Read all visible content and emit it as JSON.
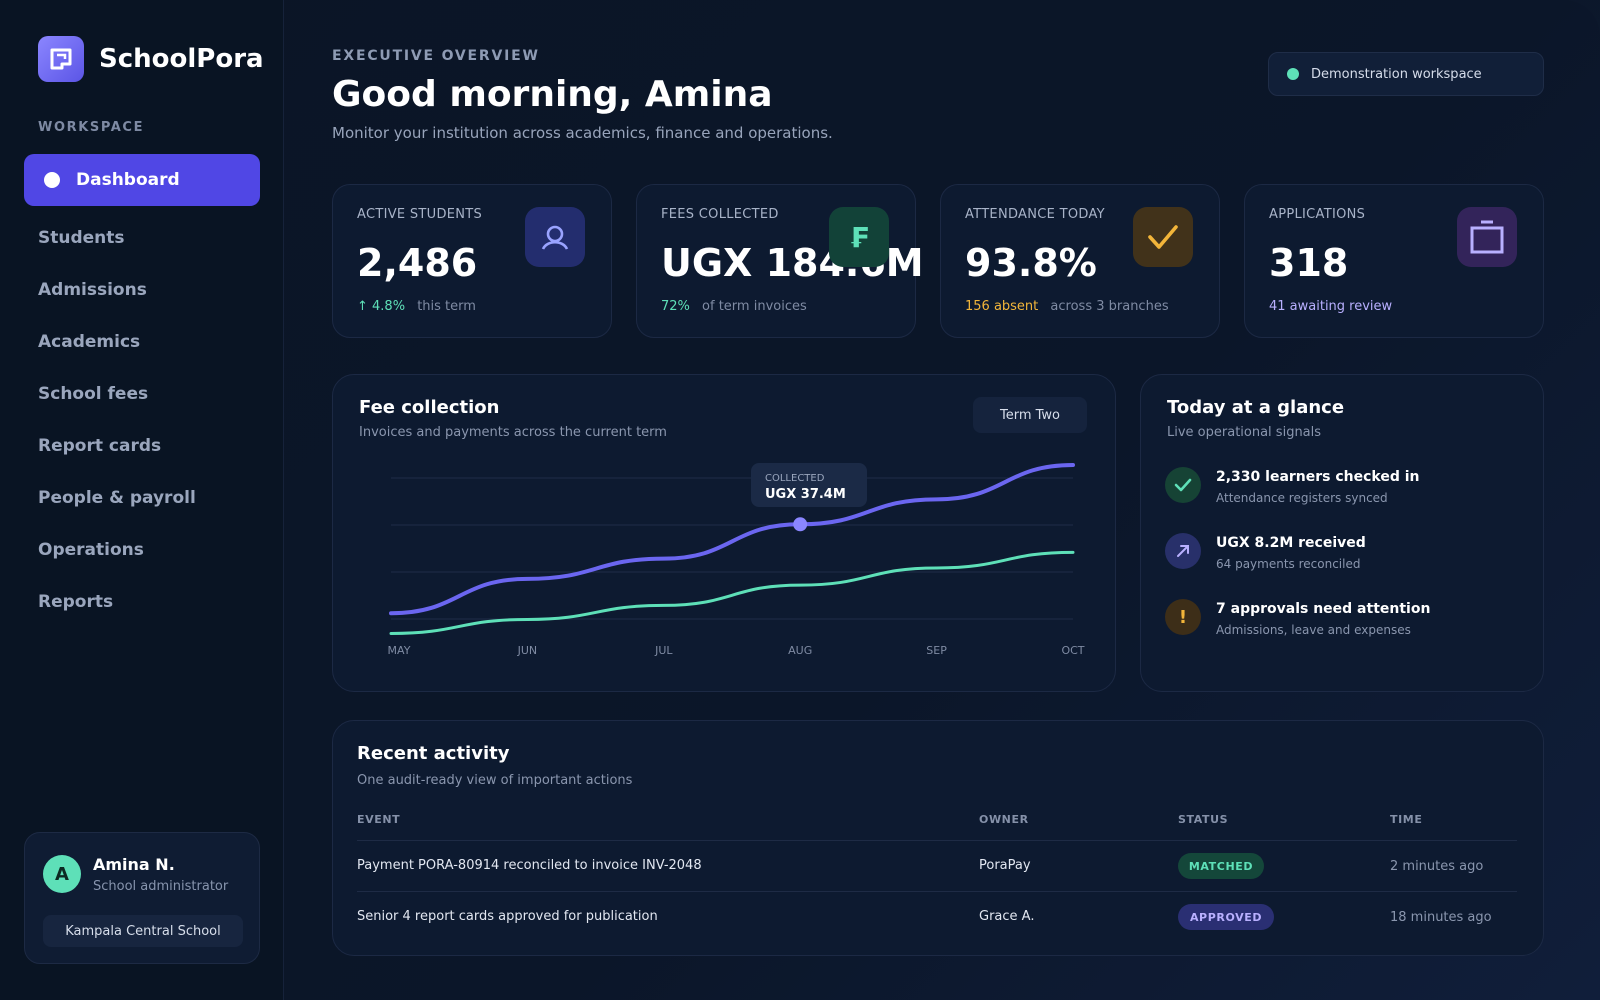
{
  "brand": {
    "name": "SchoolPora"
  },
  "sidebar": {
    "section_label": "WORKSPACE",
    "items": [
      {
        "label": "Dashboard",
        "active": true
      },
      {
        "label": "Students"
      },
      {
        "label": "Admissions"
      },
      {
        "label": "Academics"
      },
      {
        "label": "School fees"
      },
      {
        "label": "Report cards"
      },
      {
        "label": "People & payroll"
      },
      {
        "label": "Operations"
      },
      {
        "label": "Reports"
      }
    ],
    "user": {
      "initial": "A",
      "name": "Amina N.",
      "role": "School administrator",
      "school": "Kampala Central School"
    }
  },
  "header": {
    "eyebrow": "EXECUTIVE OVERVIEW",
    "greeting": "Good morning, Amina",
    "subtitle": "Monitor your institution across academics, finance and operations.",
    "workspace_pill": "Demonstration workspace"
  },
  "kpis": [
    {
      "label": "ACTIVE STUDENTS",
      "value": "2,486",
      "highlight": "↑ 4.8%",
      "foot": "this term",
      "icon": "graduate-icon"
    },
    {
      "label": "FEES COLLECTED",
      "value": "UGX 184.6M",
      "highlight": "72%",
      "foot": "of term invoices",
      "icon": "currency-icon"
    },
    {
      "label": "ATTENDANCE TODAY",
      "value": "93.8%",
      "highlight": "156 absent",
      "foot": "across 3 branches",
      "icon": "check-icon"
    },
    {
      "label": "APPLICATIONS",
      "value": "318",
      "highlight": "41 awaiting review",
      "foot": "",
      "icon": "clipboard-icon"
    }
  ],
  "fee_panel": {
    "title": "Fee collection",
    "subtitle": "Invoices and payments across the current term",
    "term_button": "Term Two",
    "tooltip_label": "COLLECTED",
    "tooltip_value": "UGX 37.4M"
  },
  "chart_data": {
    "type": "line",
    "x": [
      "MAY",
      "JUN",
      "JUL",
      "AUG",
      "SEP",
      "OCT"
    ],
    "series": [
      {
        "color": "#6b66f0",
        "values": [
          0.05,
          0.27,
          0.4,
          0.62,
          0.78,
          1.0
        ]
      },
      {
        "color": "#5ee0b8",
        "values": [
          -0.08,
          0.01,
          0.1,
          0.23,
          0.34,
          0.44
        ]
      }
    ],
    "highlight_index": 3,
    "grid": true
  },
  "glance": {
    "title": "Today at a glance",
    "subtitle": "Live operational signals",
    "items": [
      {
        "title": "2,330 learners checked in",
        "sub": "Attendance registers synced",
        "icon": "check-icon"
      },
      {
        "title": "UGX 8.2M received",
        "sub": "64 payments reconciled",
        "icon": "arrow-up-right-icon"
      },
      {
        "title": "7 approvals need attention",
        "sub": "Admissions, leave and expenses",
        "icon": "alert-icon"
      }
    ]
  },
  "activity": {
    "title": "Recent activity",
    "subtitle": "One audit-ready view of important actions",
    "columns": [
      "EVENT",
      "OWNER",
      "STATUS",
      "TIME"
    ],
    "rows": [
      {
        "event": "Payment PORA-80914 reconciled to invoice INV-2048",
        "owner": "PoraPay",
        "status": "MATCHED",
        "time": "2 minutes ago"
      },
      {
        "event": "Senior 4 report cards approved for publication",
        "owner": "Grace A.",
        "status": "APPROVED",
        "time": "18 minutes ago"
      }
    ]
  },
  "colors": {
    "accent": "#5047e5",
    "mint": "#5ee0b8",
    "amber": "#f2b53a",
    "lilac": "#b9b0ff"
  }
}
